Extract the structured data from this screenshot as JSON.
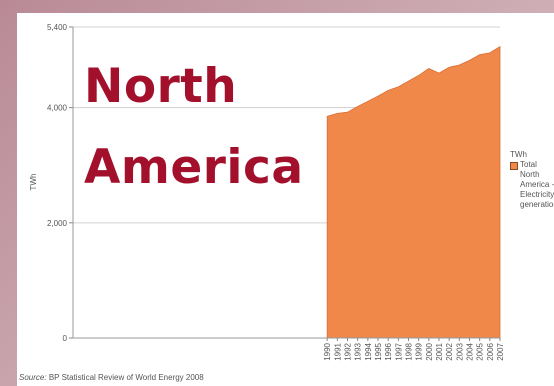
{
  "overlay": {
    "line1": "North",
    "line2": "America"
  },
  "source": {
    "label": "Source:",
    "text": "BP Statistical Review of World Energy 2008"
  },
  "legend": {
    "unit": "TWh",
    "series": "Total North America - Electricity generation",
    "swatch_color": "#f0884a"
  },
  "chart_data": {
    "type": "area",
    "ylabel": "TWh",
    "xlabel": "",
    "ylim": [
      0,
      5400
    ],
    "yticks": [
      0,
      2000,
      4000,
      5400
    ],
    "ytick_labels": [
      "0",
      "2,000",
      "4,000",
      "5,400"
    ],
    "x_range": [
      1965,
      2007
    ],
    "grid": true,
    "legend_position": "right",
    "color": "#f0884a",
    "x": [
      "1990",
      "1991",
      "1992",
      "1993",
      "1994",
      "1995",
      "1996",
      "1997",
      "1998",
      "1999",
      "2000",
      "2001",
      "2002",
      "2003",
      "2004",
      "2005",
      "2006",
      "2007"
    ],
    "series": [
      {
        "name": "Total North America - Electricity generation",
        "values": [
          3850,
          3900,
          3920,
          4020,
          4110,
          4200,
          4300,
          4360,
          4460,
          4560,
          4680,
          4600,
          4700,
          4740,
          4820,
          4920,
          4950,
          5060
        ]
      }
    ]
  }
}
